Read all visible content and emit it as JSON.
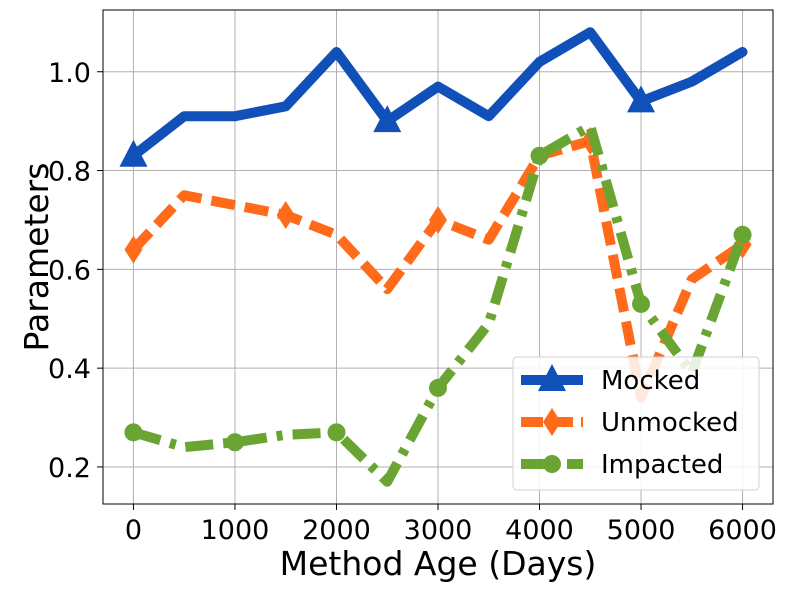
{
  "chart_data": {
    "type": "line",
    "xlabel": "Method Age (Days)",
    "ylabel": "Parameters",
    "xlim": [
      -300,
      6300
    ],
    "ylim": [
      0.125,
      1.125
    ],
    "xticks": [
      0,
      1000,
      2000,
      3000,
      4000,
      5000,
      6000
    ],
    "yticks": [
      0.2,
      0.4,
      0.6,
      0.8,
      1.0
    ],
    "xtick_labels": [
      "0",
      "1000",
      "2000",
      "3000",
      "4000",
      "5000",
      "6000"
    ],
    "ytick_labels": [
      "0.2",
      "0.4",
      "0.6",
      "0.8",
      "1.0"
    ],
    "grid": true,
    "legend_position": "bottom-right",
    "x": [
      0,
      500,
      1000,
      1500,
      2000,
      2500,
      3000,
      3500,
      4000,
      4500,
      5000,
      5500,
      6000
    ],
    "series": [
      {
        "name": "Mocked",
        "color": "#1050b8",
        "linestyle": "solid",
        "marker": "triangle",
        "values": [
          0.83,
          0.91,
          0.91,
          0.93,
          1.04,
          0.9,
          0.97,
          0.91,
          1.02,
          1.08,
          0.94,
          0.98,
          1.04
        ],
        "marker_x": [
          0,
          2500,
          5000
        ]
      },
      {
        "name": "Unmocked",
        "color": "#ff6b1a",
        "linestyle": "dashed",
        "marker": "thin-diamond",
        "values": [
          0.64,
          0.75,
          0.73,
          0.71,
          0.67,
          0.56,
          0.7,
          0.66,
          0.83,
          0.86,
          0.34,
          0.58,
          0.65
        ],
        "marker_x": [
          0,
          1500,
          3000,
          4500,
          6000
        ]
      },
      {
        "name": "Impacted",
        "color": "#6aa533",
        "linestyle": "dashdot",
        "marker": "circle",
        "values": [
          0.27,
          0.24,
          0.25,
          0.265,
          0.27,
          0.17,
          0.36,
          0.49,
          0.83,
          0.89,
          0.53,
          0.39,
          0.67
        ],
        "marker_x": [
          0,
          1000,
          2000,
          3000,
          4000,
          5000,
          6000
        ]
      }
    ]
  }
}
